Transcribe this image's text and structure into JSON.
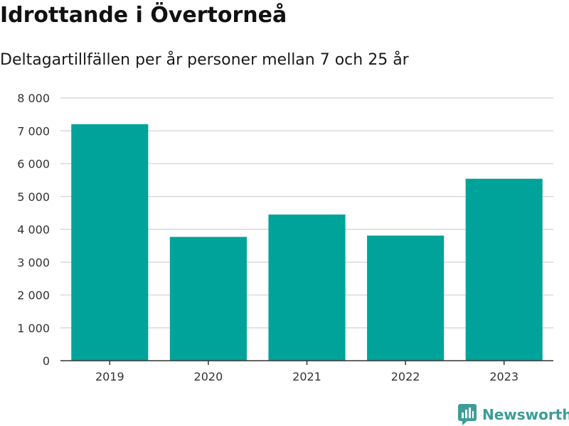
{
  "header": {
    "title": "Idrottande i Övertorneå",
    "subtitle": "Deltagartillfällen per år personer mellan 7 och 25 år"
  },
  "brand": {
    "name": "Newsworthy",
    "color": "#3d9c97",
    "icon": "newsworthy-bar-chart-icon"
  },
  "colors": {
    "bar": "#00a39a",
    "grid": "#d9d9d9",
    "axis": "#333333",
    "text": "#333333"
  },
  "chart_data": {
    "type": "bar",
    "categories": [
      "2019",
      "2020",
      "2021",
      "2022",
      "2023"
    ],
    "values": [
      7200,
      3770,
      4450,
      3810,
      5540
    ],
    "ylim": [
      0,
      8000
    ],
    "yticks": [
      0,
      1000,
      2000,
      3000,
      4000,
      5000,
      6000,
      7000,
      8000
    ],
    "ytick_labels": [
      "0",
      "1 000",
      "2 000",
      "3 000",
      "4 000",
      "5 000",
      "6 000",
      "7 000",
      "8 000"
    ],
    "grid": true,
    "legend": "none"
  }
}
